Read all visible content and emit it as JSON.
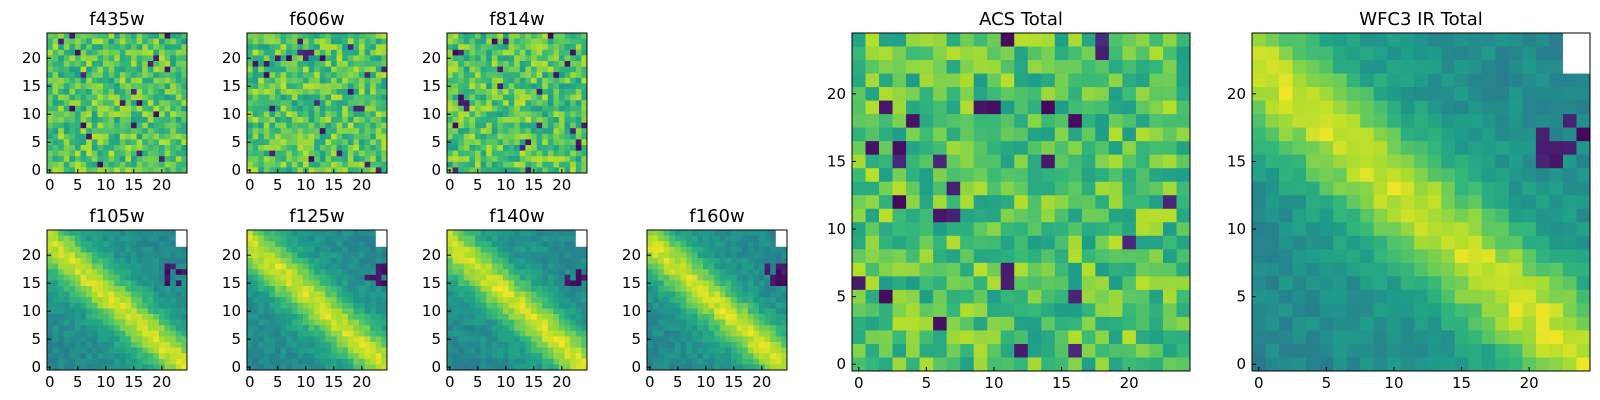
{
  "chart_data": [
    {
      "name": "f435w",
      "type": "heatmap",
      "title": "f435w",
      "pattern": "noise",
      "colormap": "viridis",
      "xlim": [
        0,
        24
      ],
      "ylim": [
        0,
        24
      ],
      "xticks": [
        "0",
        "5",
        "10",
        "15",
        "20"
      ],
      "yticks": [
        "0",
        "5",
        "10",
        "15",
        "20"
      ]
    },
    {
      "name": "f606w",
      "type": "heatmap",
      "title": "f606w",
      "pattern": "noise",
      "colormap": "viridis",
      "xlim": [
        0,
        24
      ],
      "ylim": [
        0,
        24
      ],
      "xticks": [
        "0",
        "5",
        "10",
        "15",
        "20"
      ],
      "yticks": [
        "0",
        "5",
        "10",
        "15",
        "20"
      ]
    },
    {
      "name": "f814w",
      "type": "heatmap",
      "title": "f814w",
      "pattern": "noise",
      "colormap": "viridis",
      "xlim": [
        0,
        24
      ],
      "ylim": [
        0,
        24
      ],
      "xticks": [
        "0",
        "5",
        "10",
        "15",
        "20"
      ],
      "yticks": [
        "0",
        "5",
        "10",
        "15",
        "20"
      ]
    },
    {
      "name": "f105w",
      "type": "heatmap",
      "title": "f105w",
      "pattern": "diagonal",
      "colormap": "viridis",
      "xlim": [
        0,
        24
      ],
      "ylim": [
        0,
        24
      ],
      "xticks": [
        "0",
        "5",
        "10",
        "15",
        "20"
      ],
      "yticks": [
        "0",
        "5",
        "10",
        "15",
        "20"
      ]
    },
    {
      "name": "f125w",
      "type": "heatmap",
      "title": "f125w",
      "pattern": "diagonal",
      "colormap": "viridis",
      "xlim": [
        0,
        24
      ],
      "ylim": [
        0,
        24
      ],
      "xticks": [
        "0",
        "5",
        "10",
        "15",
        "20"
      ],
      "yticks": [
        "0",
        "5",
        "10",
        "15",
        "20"
      ]
    },
    {
      "name": "f140w",
      "type": "heatmap",
      "title": "f140w",
      "pattern": "diagonal",
      "colormap": "viridis",
      "xlim": [
        0,
        24
      ],
      "ylim": [
        0,
        24
      ],
      "xticks": [
        "0",
        "5",
        "10",
        "15",
        "20"
      ],
      "yticks": [
        "0",
        "5",
        "10",
        "15",
        "20"
      ]
    },
    {
      "name": "f160w",
      "type": "heatmap",
      "title": "f160w",
      "pattern": "diagonal",
      "colormap": "viridis",
      "xlim": [
        0,
        24
      ],
      "ylim": [
        0,
        24
      ],
      "xticks": [
        "0",
        "5",
        "10",
        "15",
        "20"
      ],
      "yticks": [
        "0",
        "5",
        "10",
        "15",
        "20"
      ]
    },
    {
      "name": "acs-total",
      "type": "heatmap",
      "title": "ACS Total",
      "pattern": "noise",
      "colormap": "viridis",
      "xlim": [
        0,
        24
      ],
      "ylim": [
        0,
        24
      ],
      "xticks": [
        "0",
        "5",
        "10",
        "15",
        "20"
      ],
      "yticks": [
        "0",
        "5",
        "10",
        "15",
        "20"
      ]
    },
    {
      "name": "wfc3-ir-total",
      "type": "heatmap",
      "title": "WFC3 IR Total",
      "pattern": "diagonal",
      "colormap": "viridis",
      "xlim": [
        0,
        24
      ],
      "ylim": [
        0,
        24
      ],
      "xticks": [
        "0",
        "5",
        "10",
        "15",
        "20"
      ],
      "yticks": [
        "0",
        "5",
        "10",
        "15",
        "20"
      ]
    }
  ]
}
